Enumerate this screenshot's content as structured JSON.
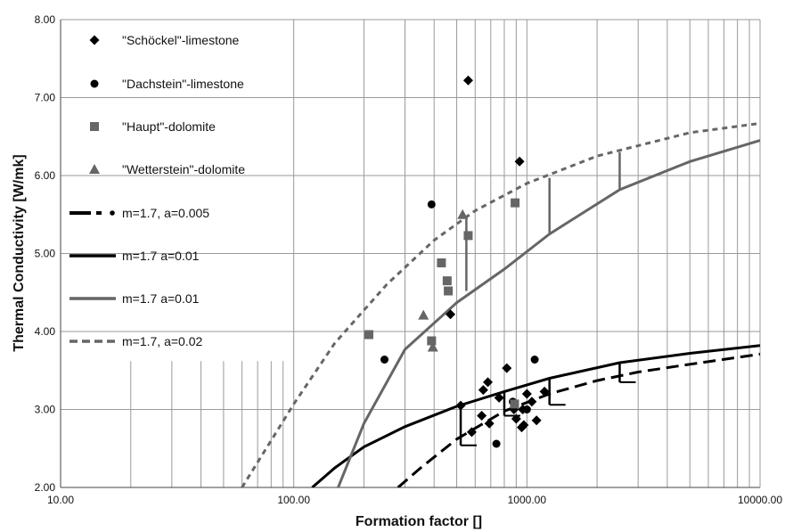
{
  "chart_data": {
    "type": "scatter",
    "xlabel": "Formation factor []",
    "ylabel": "Thermal Conductivity [W/mk]",
    "xscale": "log",
    "xlim": [
      10,
      10000
    ],
    "ylim": [
      2,
      8
    ],
    "grid": true,
    "legend_position": "top-left",
    "x_tick_labels": [
      "10.00",
      "100.00",
      "1000.00",
      "10000.00"
    ],
    "y_tick_labels": [
      "2.00",
      "3.00",
      "4.00",
      "5.00",
      "6.00",
      "7.00",
      "8.00"
    ],
    "series": [
      {
        "name": "\"Schöckel\"-limestone",
        "kind": "points",
        "marker": "diamond",
        "color": "#000000",
        "points": [
          [
            560,
            7.22
          ],
          [
            930,
            6.18
          ],
          [
            470,
            4.22
          ],
          [
            520,
            3.05
          ],
          [
            680,
            3.35
          ],
          [
            650,
            3.25
          ],
          [
            820,
            3.53
          ],
          [
            760,
            3.15
          ],
          [
            880,
            3.0
          ],
          [
            960,
            3.0
          ],
          [
            1000,
            3.2
          ],
          [
            1050,
            3.1
          ],
          [
            1190,
            3.23
          ],
          [
            640,
            2.92
          ],
          [
            690,
            2.82
          ],
          [
            900,
            2.88
          ],
          [
            1100,
            2.86
          ],
          [
            950,
            2.77
          ],
          [
            970,
            2.8
          ],
          [
            580,
            2.71
          ]
        ]
      },
      {
        "name": "\"Dachstein\"-limestone",
        "kind": "points",
        "marker": "circle",
        "color": "#000000",
        "points": [
          [
            390,
            5.63
          ],
          [
            245,
            3.64
          ],
          [
            1080,
            3.64
          ],
          [
            870,
            3.1
          ],
          [
            1000,
            3.0
          ],
          [
            740,
            2.56
          ]
        ]
      },
      {
        "name": "\"Haupt\"-dolomite",
        "kind": "points",
        "marker": "square",
        "color": "#666666",
        "points": [
          [
            890,
            5.65
          ],
          [
            560,
            5.23
          ],
          [
            430,
            4.88
          ],
          [
            455,
            4.65
          ],
          [
            460,
            4.52
          ],
          [
            390,
            3.88
          ],
          [
            210,
            3.96
          ],
          [
            885,
            3.07
          ]
        ]
      },
      {
        "name": "\"Wetterstein\"-dolomite",
        "kind": "points",
        "marker": "triangle",
        "color": "#666666",
        "points": [
          [
            530,
            5.5
          ],
          [
            360,
            4.21
          ],
          [
            395,
            3.8
          ]
        ]
      },
      {
        "name": "m=1.7, a=0.005",
        "kind": "line",
        "dash": "dashed",
        "color": "#000000",
        "points": [
          [
            280,
            2.0
          ],
          [
            350,
            2.25
          ],
          [
            500,
            2.62
          ],
          [
            800,
            2.98
          ],
          [
            1250,
            3.2
          ],
          [
            2000,
            3.37
          ],
          [
            3000,
            3.48
          ],
          [
            5000,
            3.58
          ],
          [
            10000,
            3.71
          ]
        ]
      },
      {
        "name": "m=1.7  a=0.01",
        "kind": "line",
        "dash": "solid",
        "color": "#000000",
        "points": [
          [
            120,
            2.0
          ],
          [
            150,
            2.25
          ],
          [
            200,
            2.52
          ],
          [
            300,
            2.78
          ],
          [
            500,
            3.04
          ],
          [
            800,
            3.23
          ],
          [
            1250,
            3.4
          ],
          [
            2500,
            3.6
          ],
          [
            5000,
            3.72
          ],
          [
            10000,
            3.82
          ]
        ]
      },
      {
        "name": "m=1.7 a=0.01",
        "kind": "line",
        "dash": "solid",
        "color": "#666666",
        "points": [
          [
            155,
            2.0
          ],
          [
            200,
            2.82
          ],
          [
            300,
            3.77
          ],
          [
            500,
            4.37
          ],
          [
            800,
            4.8
          ],
          [
            1250,
            5.25
          ],
          [
            2500,
            5.82
          ],
          [
            5000,
            6.18
          ],
          [
            10000,
            6.45
          ]
        ]
      },
      {
        "name": "m=1.7, a=0.02",
        "kind": "line",
        "dash": "dashed",
        "color": "#666666",
        "points": [
          [
            60,
            2.0
          ],
          [
            100,
            3.07
          ],
          [
            150,
            3.85
          ],
          [
            250,
            4.6
          ],
          [
            400,
            5.17
          ],
          [
            600,
            5.55
          ],
          [
            1000,
            5.9
          ],
          [
            2000,
            6.25
          ],
          [
            5000,
            6.55
          ],
          [
            10000,
            6.67
          ]
        ]
      },
      {
        "name": "",
        "kind": "connectors",
        "color": "#000000",
        "segments": [
          [
            [
              520,
              3.04
            ],
            [
              520,
              2.54
            ]
          ],
          [
            [
              800,
              3.23
            ],
            [
              800,
              2.92
            ]
          ],
          [
            [
              1250,
              3.4
            ],
            [
              1250,
              3.06
            ]
          ],
          [
            [
              2500,
              3.6
            ],
            [
              2500,
              3.35
            ]
          ]
        ]
      },
      {
        "name": "",
        "kind": "connectors",
        "color": "#666666",
        "segments": [
          [
            [
              550,
              5.45
            ],
            [
              550,
              4.52
            ]
          ],
          [
            [
              1250,
              5.97
            ],
            [
              1250,
              5.25
            ]
          ],
          [
            [
              2500,
              6.3
            ],
            [
              2500,
              5.82
            ]
          ]
        ]
      }
    ],
    "legend": [
      {
        "label": "\"Schöckel\"-limestone",
        "symbol": "diamond",
        "color": "#000000"
      },
      {
        "label": "\"Dachstein\"-limestone",
        "symbol": "circle",
        "color": "#000000"
      },
      {
        "label": "\"Haupt\"-dolomite",
        "symbol": "square",
        "color": "#666666"
      },
      {
        "label": "\"Wetterstein\"-dolomite",
        "symbol": "triangle",
        "color": "#666666"
      },
      {
        "label": "m=1.7, a=0.005",
        "symbol": "dash-dot",
        "color": "#000000"
      },
      {
        "label": "m=1.7  a=0.01",
        "symbol": "solid-line",
        "color": "#000000"
      },
      {
        "label": "m=1.7 a=0.01",
        "symbol": "solid-line",
        "color": "#666666"
      },
      {
        "label": "m=1.7, a=0.02",
        "symbol": "dashed-line",
        "color": "#666666"
      }
    ]
  }
}
